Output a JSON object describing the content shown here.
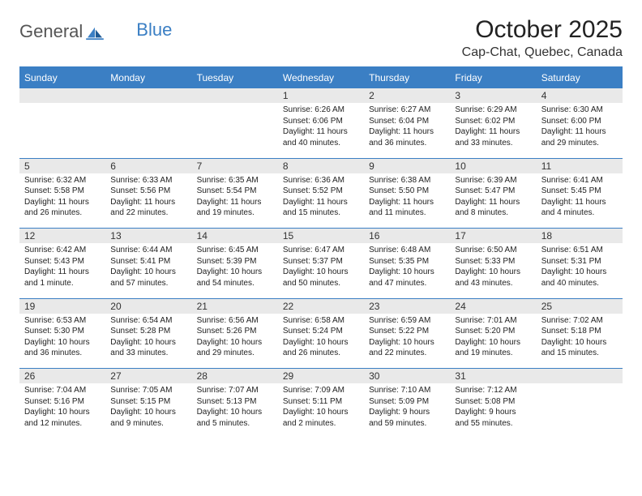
{
  "brand": {
    "part1": "General",
    "part2": "Blue"
  },
  "title": "October 2025",
  "location": "Cap-Chat, Quebec, Canada",
  "colors": {
    "accent": "#3b7fc4",
    "header_text": "#ffffff",
    "daynum_bg": "#e9e9e9",
    "body_text": "#222222",
    "page_bg": "#ffffff"
  },
  "weekdays": [
    "Sunday",
    "Monday",
    "Tuesday",
    "Wednesday",
    "Thursday",
    "Friday",
    "Saturday"
  ],
  "weeks": [
    [
      null,
      null,
      null,
      {
        "n": "1",
        "sunrise": "6:26 AM",
        "sunset": "6:06 PM",
        "daylight": "11 hours and 40 minutes."
      },
      {
        "n": "2",
        "sunrise": "6:27 AM",
        "sunset": "6:04 PM",
        "daylight": "11 hours and 36 minutes."
      },
      {
        "n": "3",
        "sunrise": "6:29 AM",
        "sunset": "6:02 PM",
        "daylight": "11 hours and 33 minutes."
      },
      {
        "n": "4",
        "sunrise": "6:30 AM",
        "sunset": "6:00 PM",
        "daylight": "11 hours and 29 minutes."
      }
    ],
    [
      {
        "n": "5",
        "sunrise": "6:32 AM",
        "sunset": "5:58 PM",
        "daylight": "11 hours and 26 minutes."
      },
      {
        "n": "6",
        "sunrise": "6:33 AM",
        "sunset": "5:56 PM",
        "daylight": "11 hours and 22 minutes."
      },
      {
        "n": "7",
        "sunrise": "6:35 AM",
        "sunset": "5:54 PM",
        "daylight": "11 hours and 19 minutes."
      },
      {
        "n": "8",
        "sunrise": "6:36 AM",
        "sunset": "5:52 PM",
        "daylight": "11 hours and 15 minutes."
      },
      {
        "n": "9",
        "sunrise": "6:38 AM",
        "sunset": "5:50 PM",
        "daylight": "11 hours and 11 minutes."
      },
      {
        "n": "10",
        "sunrise": "6:39 AM",
        "sunset": "5:47 PM",
        "daylight": "11 hours and 8 minutes."
      },
      {
        "n": "11",
        "sunrise": "6:41 AM",
        "sunset": "5:45 PM",
        "daylight": "11 hours and 4 minutes."
      }
    ],
    [
      {
        "n": "12",
        "sunrise": "6:42 AM",
        "sunset": "5:43 PM",
        "daylight": "11 hours and 1 minute."
      },
      {
        "n": "13",
        "sunrise": "6:44 AM",
        "sunset": "5:41 PM",
        "daylight": "10 hours and 57 minutes."
      },
      {
        "n": "14",
        "sunrise": "6:45 AM",
        "sunset": "5:39 PM",
        "daylight": "10 hours and 54 minutes."
      },
      {
        "n": "15",
        "sunrise": "6:47 AM",
        "sunset": "5:37 PM",
        "daylight": "10 hours and 50 minutes."
      },
      {
        "n": "16",
        "sunrise": "6:48 AM",
        "sunset": "5:35 PM",
        "daylight": "10 hours and 47 minutes."
      },
      {
        "n": "17",
        "sunrise": "6:50 AM",
        "sunset": "5:33 PM",
        "daylight": "10 hours and 43 minutes."
      },
      {
        "n": "18",
        "sunrise": "6:51 AM",
        "sunset": "5:31 PM",
        "daylight": "10 hours and 40 minutes."
      }
    ],
    [
      {
        "n": "19",
        "sunrise": "6:53 AM",
        "sunset": "5:30 PM",
        "daylight": "10 hours and 36 minutes."
      },
      {
        "n": "20",
        "sunrise": "6:54 AM",
        "sunset": "5:28 PM",
        "daylight": "10 hours and 33 minutes."
      },
      {
        "n": "21",
        "sunrise": "6:56 AM",
        "sunset": "5:26 PM",
        "daylight": "10 hours and 29 minutes."
      },
      {
        "n": "22",
        "sunrise": "6:58 AM",
        "sunset": "5:24 PM",
        "daylight": "10 hours and 26 minutes."
      },
      {
        "n": "23",
        "sunrise": "6:59 AM",
        "sunset": "5:22 PM",
        "daylight": "10 hours and 22 minutes."
      },
      {
        "n": "24",
        "sunrise": "7:01 AM",
        "sunset": "5:20 PM",
        "daylight": "10 hours and 19 minutes."
      },
      {
        "n": "25",
        "sunrise": "7:02 AM",
        "sunset": "5:18 PM",
        "daylight": "10 hours and 15 minutes."
      }
    ],
    [
      {
        "n": "26",
        "sunrise": "7:04 AM",
        "sunset": "5:16 PM",
        "daylight": "10 hours and 12 minutes."
      },
      {
        "n": "27",
        "sunrise": "7:05 AM",
        "sunset": "5:15 PM",
        "daylight": "10 hours and 9 minutes."
      },
      {
        "n": "28",
        "sunrise": "7:07 AM",
        "sunset": "5:13 PM",
        "daylight": "10 hours and 5 minutes."
      },
      {
        "n": "29",
        "sunrise": "7:09 AM",
        "sunset": "5:11 PM",
        "daylight": "10 hours and 2 minutes."
      },
      {
        "n": "30",
        "sunrise": "7:10 AM",
        "sunset": "5:09 PM",
        "daylight": "9 hours and 59 minutes."
      },
      {
        "n": "31",
        "sunrise": "7:12 AM",
        "sunset": "5:08 PM",
        "daylight": "9 hours and 55 minutes."
      },
      null
    ]
  ],
  "labels": {
    "sunrise_prefix": "Sunrise: ",
    "sunset_prefix": "Sunset: ",
    "daylight_prefix": "Daylight: "
  }
}
